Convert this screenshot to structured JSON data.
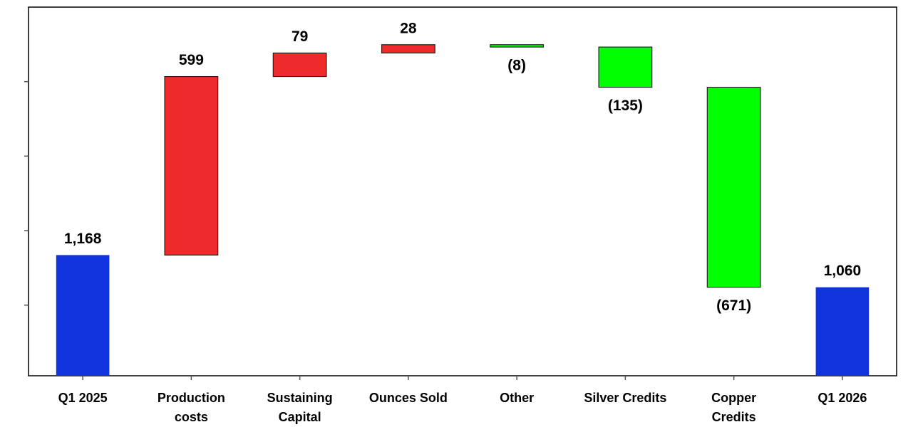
{
  "chart_data": {
    "type": "waterfall",
    "categories": [
      "Q1 2025",
      "Production\ncosts",
      "Sustaining\nCapital",
      "Ounces Sold",
      "Other",
      "Silver Credits",
      "Copper\nCredits",
      "Q1 2026"
    ],
    "values": [
      1168,
      599,
      79,
      28,
      -8,
      -135,
      -671,
      1060
    ],
    "value_labels": [
      "1,168",
      "599",
      "79",
      "28",
      "(8)",
      "(135)",
      "(671)",
      "1,060"
    ],
    "totals": [
      true,
      false,
      false,
      false,
      false,
      false,
      false,
      true
    ],
    "total_color": "#1133dd",
    "increase_color": "#ee2a2a",
    "decrease_color": "#00ff00",
    "ylim": [
      763,
      2000
    ],
    "yticks": [
      1000,
      1250,
      1500,
      1750
    ]
  }
}
